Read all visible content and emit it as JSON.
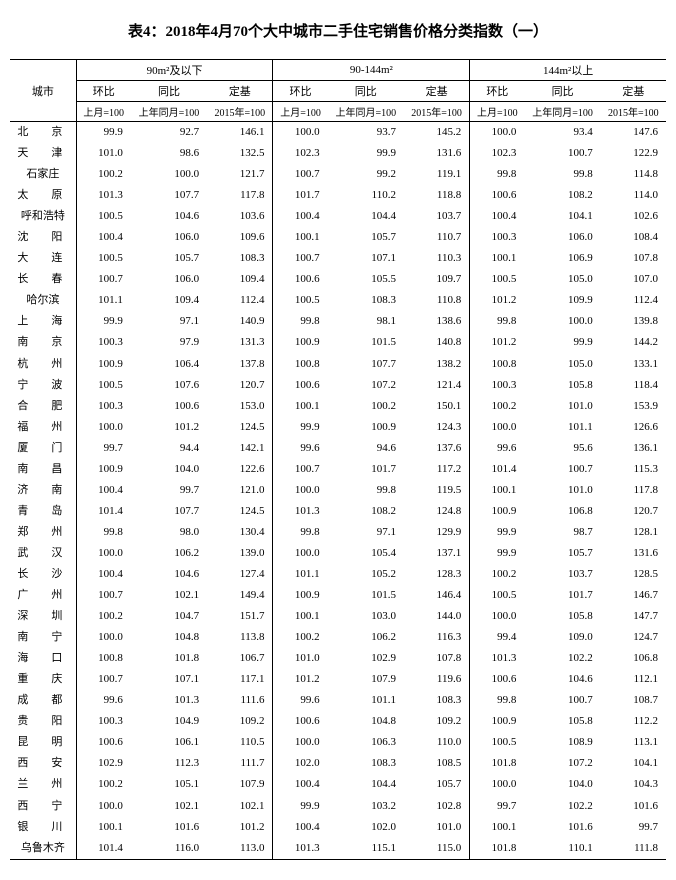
{
  "title": "表4：2018年4月70个大中城市二手住宅销售价格分类指数（一）",
  "header": {
    "city": "城市",
    "group1": "90m²及以下",
    "group2": "90-144m²",
    "group3": "144m²以上",
    "hb": "环比",
    "tb": "同比",
    "dj": "定基",
    "hb_sub": "上月=100",
    "tb_sub": "上年同月=100",
    "dj_sub": "2015年=100"
  },
  "rows": [
    {
      "city": "北　京",
      "v": [
        99.9,
        92.7,
        146.1,
        100.0,
        93.7,
        145.2,
        100.0,
        93.4,
        147.6
      ]
    },
    {
      "city": "天　津",
      "v": [
        101.0,
        98.6,
        132.5,
        102.3,
        99.9,
        131.6,
        102.3,
        100.7,
        122.9
      ]
    },
    {
      "city": "石家庄",
      "v": [
        100.2,
        100.0,
        121.7,
        100.7,
        99.2,
        119.1,
        99.8,
        99.8,
        114.8
      ]
    },
    {
      "city": "太　原",
      "v": [
        101.3,
        107.7,
        117.8,
        101.7,
        110.2,
        118.8,
        100.6,
        108.2,
        114.0
      ]
    },
    {
      "city": "呼和浩特",
      "v": [
        100.5,
        104.6,
        103.6,
        100.4,
        104.4,
        103.7,
        100.4,
        104.1,
        102.6
      ]
    },
    {
      "city": "沈　阳",
      "v": [
        100.4,
        106.0,
        109.6,
        100.1,
        105.7,
        110.7,
        100.3,
        106.0,
        108.4
      ]
    },
    {
      "city": "大　连",
      "v": [
        100.5,
        105.7,
        108.3,
        100.7,
        107.1,
        110.3,
        100.1,
        106.9,
        107.8
      ]
    },
    {
      "city": "长　春",
      "v": [
        100.7,
        106.0,
        109.4,
        100.6,
        105.5,
        109.7,
        100.5,
        105.0,
        107.0
      ]
    },
    {
      "city": "哈尔滨",
      "v": [
        101.1,
        109.4,
        112.4,
        100.5,
        108.3,
        110.8,
        101.2,
        109.9,
        112.4
      ]
    },
    {
      "city": "上　海",
      "v": [
        99.9,
        97.1,
        140.9,
        99.8,
        98.1,
        138.6,
        99.8,
        100.0,
        139.8
      ]
    },
    {
      "city": "南　京",
      "v": [
        100.3,
        97.9,
        131.3,
        100.9,
        101.5,
        140.8,
        101.2,
        99.9,
        144.2
      ]
    },
    {
      "city": "杭　州",
      "v": [
        100.9,
        106.4,
        137.8,
        100.8,
        107.7,
        138.2,
        100.8,
        105.0,
        133.1
      ]
    },
    {
      "city": "宁　波",
      "v": [
        100.5,
        107.6,
        120.7,
        100.6,
        107.2,
        121.4,
        100.3,
        105.8,
        118.4
      ]
    },
    {
      "city": "合　肥",
      "v": [
        100.3,
        100.6,
        153.0,
        100.1,
        100.2,
        150.1,
        100.2,
        101.0,
        153.9
      ]
    },
    {
      "city": "福　州",
      "v": [
        100.0,
        101.2,
        124.5,
        99.9,
        100.9,
        124.3,
        100.0,
        101.1,
        126.6
      ]
    },
    {
      "city": "厦　门",
      "v": [
        99.7,
        94.4,
        142.1,
        99.6,
        94.6,
        137.6,
        99.6,
        95.6,
        136.1
      ]
    },
    {
      "city": "南　昌",
      "v": [
        100.9,
        104.0,
        122.6,
        100.7,
        101.7,
        117.2,
        101.4,
        100.7,
        115.3
      ]
    },
    {
      "city": "济　南",
      "v": [
        100.4,
        99.7,
        121.0,
        100.0,
        99.8,
        119.5,
        100.1,
        101.0,
        117.8
      ]
    },
    {
      "city": "青　岛",
      "v": [
        101.4,
        107.7,
        124.5,
        101.3,
        108.2,
        124.8,
        100.9,
        106.8,
        120.7
      ]
    },
    {
      "city": "郑　州",
      "v": [
        99.8,
        98.0,
        130.4,
        99.8,
        97.1,
        129.9,
        99.9,
        98.7,
        128.1
      ]
    },
    {
      "city": "武　汉",
      "v": [
        100.0,
        106.2,
        139.0,
        100.0,
        105.4,
        137.1,
        99.9,
        105.7,
        131.6
      ]
    },
    {
      "city": "长　沙",
      "v": [
        100.4,
        104.6,
        127.4,
        101.1,
        105.2,
        128.3,
        100.2,
        103.7,
        128.5
      ]
    },
    {
      "city": "广　州",
      "v": [
        100.7,
        102.1,
        149.4,
        100.9,
        101.5,
        146.4,
        100.5,
        101.7,
        146.7
      ]
    },
    {
      "city": "深　圳",
      "v": [
        100.2,
        104.7,
        151.7,
        100.1,
        103.0,
        144.0,
        100.0,
        105.8,
        147.7
      ]
    },
    {
      "city": "南　宁",
      "v": [
        100.0,
        104.8,
        113.8,
        100.2,
        106.2,
        116.3,
        99.4,
        109.0,
        124.7
      ]
    },
    {
      "city": "海　口",
      "v": [
        100.8,
        101.8,
        106.7,
        101.0,
        102.9,
        107.8,
        101.3,
        102.2,
        106.8
      ]
    },
    {
      "city": "重　庆",
      "v": [
        100.7,
        107.1,
        117.1,
        101.2,
        107.9,
        119.6,
        100.6,
        104.6,
        112.1
      ]
    },
    {
      "city": "成　都",
      "v": [
        99.6,
        101.3,
        111.6,
        99.6,
        101.1,
        108.3,
        99.8,
        100.7,
        108.7
      ]
    },
    {
      "city": "贵　阳",
      "v": [
        100.3,
        104.9,
        109.2,
        100.6,
        104.8,
        109.2,
        100.9,
        105.8,
        112.2
      ]
    },
    {
      "city": "昆　明",
      "v": [
        100.6,
        106.1,
        110.5,
        100.0,
        106.3,
        110.0,
        100.5,
        108.9,
        113.1
      ]
    },
    {
      "city": "西　安",
      "v": [
        102.9,
        112.3,
        111.7,
        102.0,
        108.3,
        108.5,
        101.8,
        107.2,
        104.1
      ]
    },
    {
      "city": "兰　州",
      "v": [
        100.2,
        105.1,
        107.9,
        100.4,
        104.4,
        105.7,
        100.0,
        104.0,
        104.3
      ]
    },
    {
      "city": "西　宁",
      "v": [
        100.0,
        102.1,
        102.1,
        99.9,
        103.2,
        102.8,
        99.7,
        102.2,
        101.6
      ]
    },
    {
      "city": "银　川",
      "v": [
        100.1,
        101.6,
        101.2,
        100.4,
        102.0,
        101.0,
        100.1,
        101.6,
        99.7
      ]
    },
    {
      "city": "乌鲁木齐",
      "v": [
        101.4,
        116.0,
        113.0,
        101.3,
        115.1,
        115.0,
        101.8,
        110.1,
        111.8
      ]
    }
  ]
}
